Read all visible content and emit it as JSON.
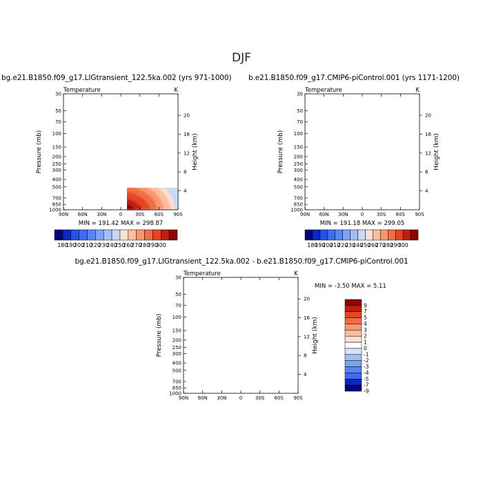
{
  "page": {
    "season": "DJF"
  },
  "panels": [
    {
      "title": "bg.e21.B1850.f09_g17.LIGtransient_122.5ka.002 (yrs 971-1000)",
      "left_label": "Temperature",
      "right_label": "K",
      "ylabel": "Pressure (mb)",
      "y2label": "Height (km)",
      "stats": "MIN = 191.42   MAX = 298.87"
    },
    {
      "title": "b.e21.B1850.f09_g17.CMIP6-piControl.001 (yrs 1171-1200)",
      "left_label": "Temperature",
      "right_label": "K",
      "ylabel": "Pressure (mb)",
      "y2label": "Height (km)",
      "stats": "MIN = 191.18   MAX = 299.05"
    },
    {
      "title": "bg.e21.B1850.f09_g17.LIGtransient_122.5ka.002 - b.e21.B1850.f09_g17.CMIP6-piControl.001",
      "left_label": "Temperature",
      "right_label": "K",
      "ylabel": "Pressure (mb)",
      "y2label": "Height (km)",
      "stats": "MIN =  -3.50   MAX =   5.11"
    }
  ],
  "chart_data": [
    {
      "type": "heatmap",
      "variable": "Temperature (K)",
      "min": 191.42,
      "max": 298.87,
      "x_ticks": [
        "90N",
        "60N",
        "30N",
        "0",
        "30S",
        "60S",
        "90S"
      ],
      "y_ticks": [
        "30",
        "50",
        "70",
        "100",
        "150",
        "200",
        "250",
        "300",
        "400",
        "500",
        "700",
        "850",
        "1000"
      ],
      "y2_ticks": [
        "20",
        "16",
        "12",
        "8",
        "4"
      ],
      "colorbar_ticks": [
        "180",
        "190",
        "200",
        "210",
        "220",
        "230",
        "240",
        "250",
        "260",
        "270",
        "280",
        "290",
        "300"
      ],
      "colorbar_colors": [
        "#03057a",
        "#0a28c2",
        "#2350e6",
        "#3f6bf0",
        "#5a86f5",
        "#7da2f8",
        "#a3bff5",
        "#c7daf5",
        "#fde0d2",
        "#fbbf9f",
        "#f89870",
        "#f26d46",
        "#e34525",
        "#c0200f",
        "#8c0606"
      ],
      "ylim": [
        1000,
        30
      ]
    },
    {
      "type": "heatmap",
      "variable": "Temperature (K)",
      "min": 191.18,
      "max": 299.05,
      "x_ticks": [
        "90N",
        "60N",
        "30N",
        "0",
        "30S",
        "60S",
        "90S"
      ],
      "y_ticks": [
        "30",
        "50",
        "70",
        "100",
        "150",
        "200",
        "250",
        "300",
        "400",
        "500",
        "700",
        "850",
        "1000"
      ],
      "y2_ticks": [
        "20",
        "16",
        "12",
        "8",
        "4"
      ],
      "colorbar_ticks": [
        "180",
        "190",
        "200",
        "210",
        "220",
        "230",
        "240",
        "250",
        "260",
        "270",
        "280",
        "290",
        "300"
      ],
      "colorbar_colors": [
        "#03057a",
        "#0a28c2",
        "#2350e6",
        "#3f6bf0",
        "#5a86f5",
        "#7da2f8",
        "#a3bff5",
        "#c7daf5",
        "#fde0d2",
        "#fbbf9f",
        "#f89870",
        "#f26d46",
        "#e34525",
        "#c0200f",
        "#8c0606"
      ],
      "ylim": [
        1000,
        30
      ]
    },
    {
      "type": "heatmap",
      "variable": "Temperature difference (K)",
      "min": -3.5,
      "max": 5.11,
      "x_ticks": [
        "90N",
        "60N",
        "30N",
        "0",
        "30S",
        "60S",
        "90S"
      ],
      "y_ticks": [
        "30",
        "50",
        "70",
        "100",
        "150",
        "200",
        "250",
        "300",
        "400",
        "500",
        "700",
        "850",
        "1000"
      ],
      "y2_ticks": [
        "20",
        "16",
        "12",
        "8",
        "4"
      ],
      "colorbar_ticks": [
        "9",
        "7",
        "5",
        "4",
        "3",
        "2",
        "1",
        "0",
        "-1",
        "-2",
        "-3",
        "-4",
        "-5",
        "-7",
        "-9"
      ],
      "colorbar_colors": [
        "#8c0606",
        "#c0200f",
        "#e34525",
        "#f26d46",
        "#f89870",
        "#fbbf9f",
        "#fde0d2",
        "#ffffff",
        "#d2e4f8",
        "#a3bff5",
        "#7da2f8",
        "#5a86f5",
        "#3f6bf0",
        "#0a28c2",
        "#03057a"
      ],
      "ylim": [
        1000,
        30
      ]
    }
  ]
}
